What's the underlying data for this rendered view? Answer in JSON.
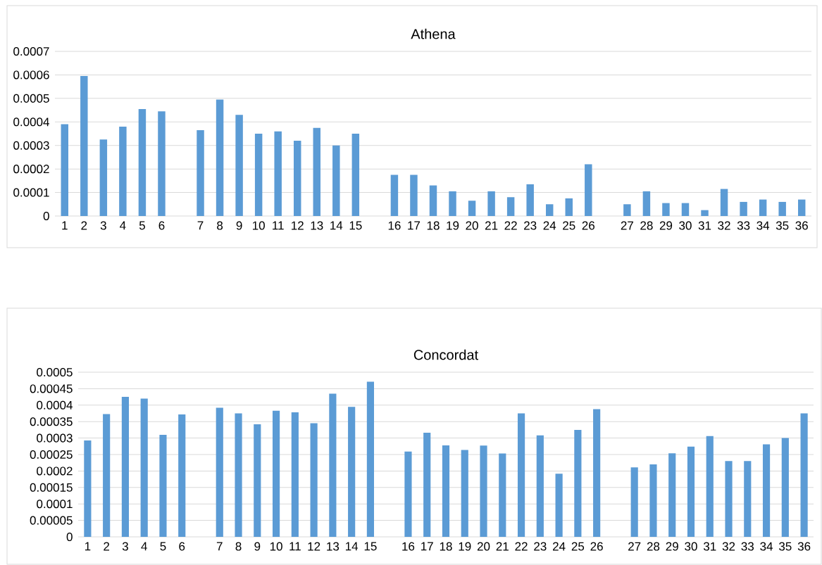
{
  "chart_data": [
    {
      "type": "bar",
      "title": "Athena",
      "color": "#5b9bd5",
      "grid": "y",
      "categories": [
        "1",
        "2",
        "3",
        "4",
        "5",
        "6",
        null,
        "7",
        "8",
        "9",
        "10",
        "11",
        "12",
        "13",
        "14",
        "15",
        null,
        "16",
        "17",
        "18",
        "19",
        "20",
        "21",
        "22",
        "23",
        "24",
        "25",
        "26",
        null,
        "27",
        "28",
        "29",
        "30",
        "31",
        "32",
        "33",
        "34",
        "35",
        "36"
      ],
      "values": [
        0.00039,
        0.000595,
        0.000325,
        0.00038,
        0.000455,
        0.000445,
        null,
        0.000365,
        0.000495,
        0.00043,
        0.00035,
        0.00036,
        0.00032,
        0.000375,
        0.0003,
        0.00035,
        null,
        0.000175,
        0.000175,
        0.00013,
        0.000105,
        6.5e-05,
        0.000105,
        8e-05,
        0.000135,
        5e-05,
        7.5e-05,
        0.00022,
        null,
        5e-05,
        0.000105,
        5.5e-05,
        5.5e-05,
        2.5e-05,
        0.000115,
        6e-05,
        7e-05,
        6e-05,
        7e-05
      ],
      "ylim": [
        0,
        0.0007
      ],
      "yticks": [
        0,
        0.0001,
        0.0002,
        0.0003,
        0.0004,
        0.0005,
        0.0006,
        0.0007
      ]
    },
    {
      "type": "bar",
      "title": "Concordat",
      "color": "#5b9bd5",
      "grid": "y",
      "categories": [
        "1",
        "2",
        "3",
        "4",
        "5",
        "6",
        null,
        "7",
        "8",
        "9",
        "10",
        "11",
        "12",
        "13",
        "14",
        "15",
        null,
        "16",
        "17",
        "18",
        "19",
        "20",
        "21",
        "22",
        "23",
        "24",
        "25",
        "26",
        null,
        "27",
        "28",
        "29",
        "30",
        "31",
        "32",
        "33",
        "34",
        "35",
        "36"
      ],
      "values": [
        0.000293,
        0.000373,
        0.000425,
        0.00042,
        0.00031,
        0.000372,
        null,
        0.000392,
        0.000375,
        0.000342,
        0.000383,
        0.000378,
        0.000345,
        0.000435,
        0.000395,
        0.000471,
        null,
        0.000259,
        0.000316,
        0.000278,
        0.000264,
        0.000277,
        0.000253,
        0.000375,
        0.000308,
        0.000192,
        0.000325,
        0.000388,
        null,
        0.000211,
        0.00022,
        0.000254,
        0.000274,
        0.000306,
        0.00023,
        0.00023,
        0.000281,
        0.0003,
        0.000375
      ],
      "ylim": [
        0,
        0.0005
      ],
      "yticks": [
        0,
        {
          "value": 5e-05,
          "label": "0.00005"
        },
        0.0001,
        0.00015,
        0.0002,
        0.00025,
        0.0003,
        0.00035,
        0.0004,
        0.00045,
        0.0005
      ]
    }
  ]
}
